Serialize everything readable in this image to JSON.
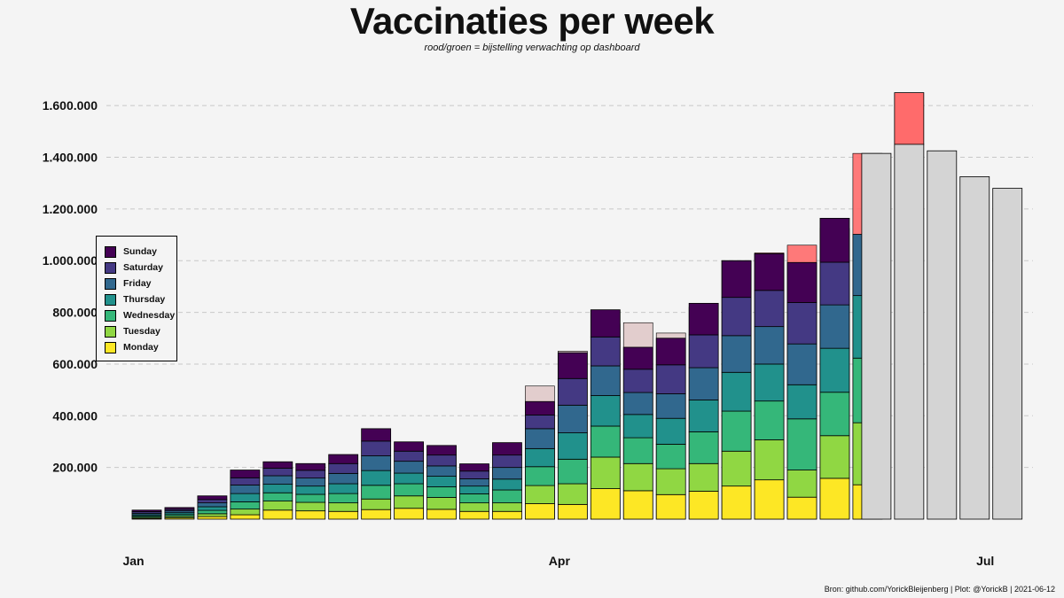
{
  "chart_data": {
    "type": "bar",
    "title": "Vaccinaties per week",
    "subtitle": "rood/groen = bijstelling verwachting op dashboard",
    "caption": "Bron: github.com/YorickBleijenberg | Plot: @YorickB  |  2021-06-12",
    "xlabel": "",
    "ylabel": "",
    "ylim": [
      0,
      1700000
    ],
    "y_ticks": [
      200000,
      400000,
      600000,
      800000,
      1000000,
      1200000,
      1400000,
      1600000
    ],
    "y_tick_labels": [
      "200.000",
      "400.000",
      "600.000",
      "800.000",
      "1.000.000",
      "1.200.000",
      "1.400.000",
      "1.600.000"
    ],
    "x_tick_labels": [
      "Jan",
      "Apr",
      "Jul"
    ],
    "x_tick_weeks": [
      1,
      14,
      27
    ],
    "grid": "horizontal dashed",
    "legend_position": "left",
    "day_order": [
      "Monday",
      "Tuesday",
      "Wednesday",
      "Thursday",
      "Friday",
      "Saturday",
      "Sunday"
    ],
    "legend": {
      "Sunday": "#440154",
      "Saturday": "#443983",
      "Friday": "#31688e",
      "Thursday": "#21918c",
      "Wednesday": "#35b779",
      "Tuesday": "#90d743",
      "Monday": "#fde725"
    },
    "legend_order": [
      "Sunday",
      "Saturday",
      "Friday",
      "Thursday",
      "Wednesday",
      "Tuesday",
      "Monday"
    ],
    "weeks": [
      1,
      2,
      3,
      4,
      5,
      6,
      7,
      8,
      9,
      10,
      11,
      12,
      13,
      14,
      15,
      16,
      17,
      18,
      19,
      20,
      21,
      22,
      23
    ],
    "daily_values": [
      [
        3000,
        4000,
        5000,
        5000,
        6000,
        6000,
        6000
      ],
      [
        5000,
        6000,
        7000,
        7000,
        7000,
        6000,
        7000
      ],
      [
        10000,
        11000,
        13000,
        14000,
        15000,
        13000,
        14000
      ],
      [
        17000,
        22000,
        28000,
        32000,
        33000,
        28000,
        30000
      ],
      [
        35000,
        35000,
        32000,
        33000,
        33000,
        29000,
        25000
      ],
      [
        32000,
        33000,
        31000,
        32000,
        31000,
        30000,
        26000
      ],
      [
        30000,
        33000,
        36000,
        38000,
        40000,
        38000,
        35000
      ],
      [
        37000,
        41000,
        53000,
        57000,
        57000,
        57000,
        48000
      ],
      [
        42000,
        48000,
        47000,
        41000,
        46000,
        39000,
        36000
      ],
      [
        38000,
        46000,
        41000,
        41000,
        40000,
        42000,
        37000
      ],
      [
        30000,
        33000,
        35000,
        30000,
        28000,
        30000,
        28000
      ],
      [
        30000,
        33000,
        50000,
        42000,
        45000,
        48000,
        48000
      ],
      [
        60000,
        70000,
        73000,
        70000,
        77000,
        53000,
        52000
      ],
      [
        57000,
        80000,
        95000,
        102000,
        107000,
        103000,
        100000
      ],
      [
        118000,
        122000,
        120000,
        118000,
        115000,
        112000,
        105000
      ],
      [
        110000,
        105000,
        100000,
        90000,
        85000,
        90000,
        85000
      ],
      [
        95000,
        100000,
        95000,
        100000,
        95000,
        112000,
        103000
      ],
      [
        108000,
        107000,
        123000,
        123000,
        125000,
        127000,
        122000
      ],
      [
        128000,
        135000,
        155000,
        150000,
        142000,
        148000,
        142000
      ],
      [
        152000,
        155000,
        150000,
        143000,
        145000,
        140000,
        142000
      ],
      [
        85000,
        105000,
        198000,
        132000,
        158000,
        160000,
        155000
      ],
      [
        158000,
        165000,
        168000,
        170000,
        168000,
        165000,
        170000
      ],
      [
        133000,
        240000,
        250000,
        242000,
        237000,
        0,
        0
      ]
    ],
    "previous_expectation": [
      null,
      null,
      null,
      null,
      null,
      null,
      null,
      null,
      null,
      null,
      null,
      null,
      515000,
      650000,
      755000,
      760000,
      720000,
      820000,
      1000000,
      1030000,
      1060000,
      1125000,
      1415000
    ],
    "forecast_weeks": [
      24,
      25,
      26,
      27
    ],
    "forecast_values": [
      1450000,
      1425000,
      1325000,
      1280000
    ],
    "forecast_adjustment": [
      1650000,
      null,
      null,
      null
    ]
  }
}
